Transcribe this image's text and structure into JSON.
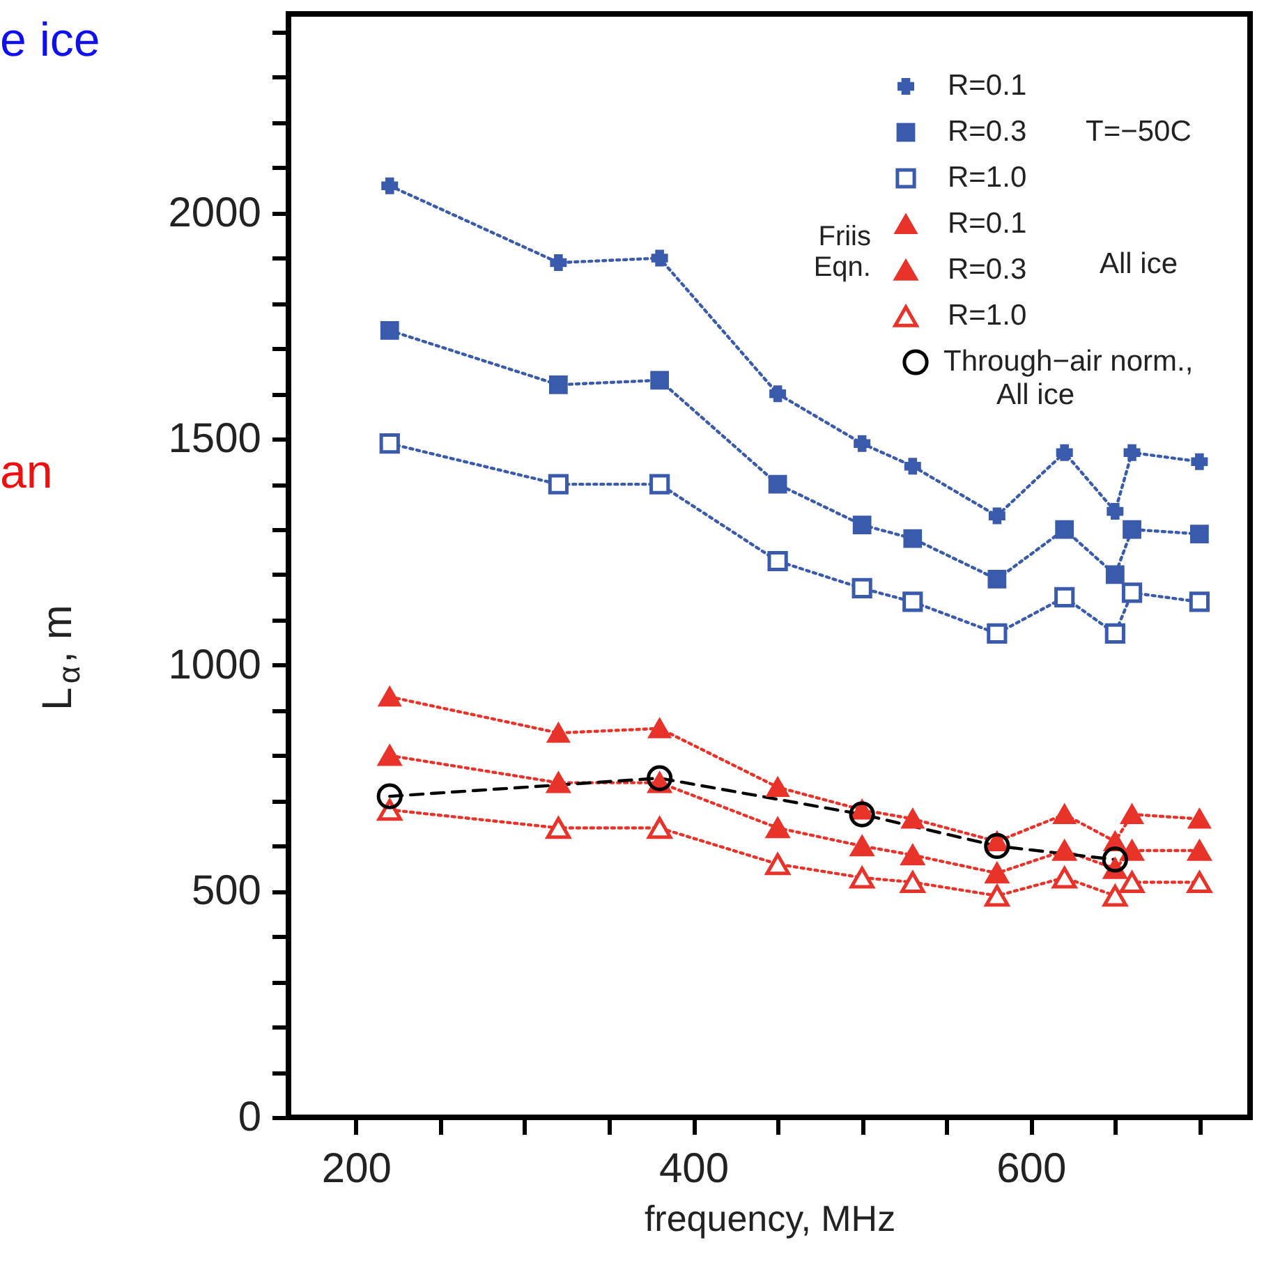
{
  "chart_data": {
    "type": "line",
    "xlabel": "frequency,  MHz",
    "ylabel": "L$_{α}$, m",
    "x": [
      220,
      320,
      380,
      450,
      500,
      530,
      580,
      620,
      650,
      660,
      700
    ],
    "xlim": [
      160,
      730
    ],
    "xticks": [
      200,
      {
        "value": 250,
        "label": null
      },
      {
        "value": 300,
        "label": null
      },
      {
        "value": 350,
        "label": null
      },
      400,
      {
        "value": 450,
        "label": null
      },
      {
        "value": 500,
        "label": null
      },
      {
        "value": 550,
        "label": null
      },
      600,
      {
        "value": 650,
        "label": null
      },
      {
        "value": 700,
        "label": null
      }
    ],
    "ylim": [
      0,
      2440
    ],
    "yticks": [
      0,
      {
        "value": 100,
        "label": null
      },
      {
        "value": 200,
        "label": null
      },
      {
        "value": 300,
        "label": null
      },
      {
        "value": 400,
        "label": null
      },
      500,
      {
        "value": 600,
        "label": null
      },
      {
        "value": 700,
        "label": null
      },
      {
        "value": 800,
        "label": null
      },
      {
        "value": 900,
        "label": null
      },
      1000,
      {
        "value": 1100,
        "label": null
      },
      {
        "value": 1200,
        "label": null
      },
      {
        "value": 1300,
        "label": null
      },
      {
        "value": 1400,
        "label": null
      },
      1500,
      {
        "value": 1600,
        "label": null
      },
      {
        "value": 1700,
        "label": null
      },
      {
        "value": 1800,
        "label": null
      },
      {
        "value": 1900,
        "label": null
      },
      2000,
      {
        "value": 2100,
        "label": null
      },
      {
        "value": 2200,
        "label": null
      },
      {
        "value": 2300,
        "label": null
      },
      {
        "value": 2400,
        "label": null
      }
    ],
    "grid": false,
    "legend": "top right",
    "series": [
      {
        "name": "R=0.1",
        "color": "#3a5bab",
        "marker": "cross",
        "line_style": "dotted",
        "values": [
          2060,
          1890,
          1900,
          1600,
          1490,
          1440,
          1330,
          1470,
          1340,
          1470,
          1450
        ]
      },
      {
        "name": "R=0.3",
        "color": "#3a5bab",
        "marker": "square",
        "line_style": "dotted",
        "values": [
          1740,
          1620,
          1630,
          1400,
          1310,
          1280,
          1190,
          1300,
          1200,
          1300,
          1290
        ]
      },
      {
        "name": "R=1.0",
        "color": "#3a5bab",
        "marker": "square",
        "line_style": "dotted",
        "values": [
          1490,
          1400,
          1400,
          1230,
          1170,
          1140,
          1070,
          1150,
          1070,
          1160,
          1140
        ]
      },
      {
        "name": "R=0.1",
        "color": "#e8332a",
        "marker": "triangle",
        "line_style": "dotted",
        "values": [
          930,
          850,
          860,
          730,
          680,
          660,
          610,
          670,
          610,
          670,
          660
        ]
      },
      {
        "name": "R=0.3",
        "color": "#e8332a",
        "marker": "triangle",
        "line_style": "dotted",
        "values": [
          800,
          740,
          740,
          640,
          600,
          580,
          540,
          590,
          550,
          590,
          590
        ]
      },
      {
        "name": "R=1.0",
        "color": "#e8332a",
        "marker": "triangle",
        "line_style": "dotted",
        "values": [
          680,
          640,
          640,
          560,
          530,
          520,
          490,
          530,
          490,
          520,
          520
        ]
      },
      {
        "name": "Through−air norm., All ice",
        "color": "#000000",
        "marker": "circle",
        "line_style": "dashed",
        "x": [
          220,
          380,
          500,
          580,
          650
        ],
        "values": [
          710,
          750,
          670,
          600,
          570
        ]
      }
    ],
    "annotations": [
      "Friis Eqn.",
      "T=−50C",
      "All ice",
      "e ice",
      "an"
    ]
  }
}
